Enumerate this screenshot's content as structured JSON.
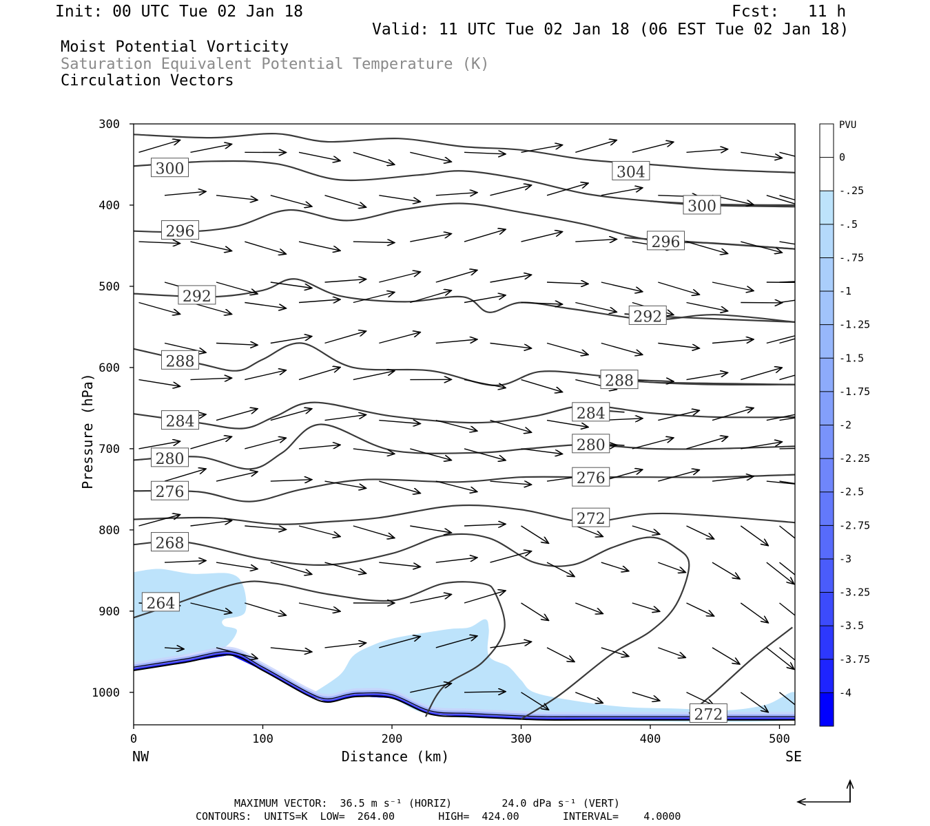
{
  "header": {
    "init": "Init: 00 UTC Tue 02 Jan 18",
    "fcst": "Fcst:   11 h",
    "valid": "Valid: 11 UTC Tue 02 Jan 18 (06 EST Tue 02 Jan 18)",
    "field1": "Moist Potential Vorticity",
    "field2": "Saturation Equivalent Potential Temperature (K)",
    "field3": "Circulation Vectors"
  },
  "footer": {
    "line1": "MAXIMUM VECTOR:  36.5 m s⁻¹ (HORIZ)        24.0 dPa s⁻¹ (VERT)",
    "line2": "CONTOURS:  UNITS=K  LOW=  264.00       HIGH=  424.00       INTERVAL=    4.0000"
  },
  "colors": {
    "contour": "#3a3a3a",
    "vector": "#000000",
    "frame": "#000000",
    "pv_light": "#bde3fb",
    "pv_dark": "#0000ff"
  },
  "chart_data": {
    "type": "contour",
    "xlabel": "Distance (km)",
    "ylabel": "Pressure (hPa)",
    "x_ticks": [
      0,
      100,
      200,
      300,
      400,
      500
    ],
    "y_ticks": [
      300,
      400,
      500,
      600,
      700,
      800,
      900,
      1000
    ],
    "xlim": [
      0,
      512
    ],
    "ylim": [
      300,
      1040
    ],
    "y_inverted": true,
    "left_end": "NW",
    "right_end": "SE",
    "colorbar": {
      "title": "PVU",
      "labels": [
        "0",
        "-.25",
        "-.5",
        "-.75",
        "-1",
        "-1.25",
        "-1.5",
        "-1.75",
        "-2",
        "-2.25",
        "-2.5",
        "-2.75",
        "-3",
        "-3.25",
        "-3.5",
        "-3.75",
        "-4"
      ],
      "colors": [
        "#ffffff",
        "#ffffff",
        "#bde3fb",
        "#b4d9fb",
        "#aacefb",
        "#a1c3fb",
        "#97b7fb",
        "#8dabfb",
        "#839ffb",
        "#7993fb",
        "#6f86fb",
        "#6379fb",
        "#576bfb",
        "#4a5cfb",
        "#3c4bfc",
        "#2d38fd",
        "#1e24fe",
        "#0000ff"
      ]
    },
    "theta_contours": [
      {
        "value": 304,
        "label": "304",
        "label_at": [
          385,
          358
        ],
        "points": [
          [
            0,
            313
          ],
          [
            60,
            317
          ],
          [
            110,
            312
          ],
          [
            150,
            322
          ],
          [
            205,
            318
          ],
          [
            255,
            328
          ],
          [
            300,
            332
          ],
          [
            350,
            344
          ],
          [
            400,
            350
          ],
          [
            450,
            356
          ],
          [
            512,
            360
          ]
        ]
      },
      {
        "value": 300,
        "label": "300",
        "label_at": [
          28,
          354
        ],
        "points": [
          [
            0,
            352
          ],
          [
            60,
            346
          ],
          [
            110,
            349
          ],
          [
            160,
            369
          ],
          [
            220,
            363
          ],
          [
            255,
            358
          ],
          [
            300,
            368
          ],
          [
            350,
            386
          ],
          [
            400,
            395
          ],
          [
            450,
            399
          ],
          [
            512,
            400
          ]
        ]
      },
      {
        "value": 300,
        "label": "300",
        "label_at": [
          440,
          400
        ],
        "points": [
          [
            400,
            395
          ],
          [
            440,
            400
          ],
          [
            512,
            402
          ]
        ]
      },
      {
        "value": 296,
        "label": "296",
        "label_at": [
          36,
          431
        ],
        "points": [
          [
            0,
            432
          ],
          [
            40,
            433
          ],
          [
            80,
            426
          ],
          [
            120,
            406
          ],
          [
            165,
            419
          ],
          [
            210,
            405
          ],
          [
            255,
            398
          ],
          [
            300,
            409
          ],
          [
            350,
            424
          ],
          [
            400,
            443
          ],
          [
            450,
            447
          ],
          [
            512,
            454
          ]
        ]
      },
      {
        "value": 296,
        "label": "296",
        "label_at": [
          412,
          444
        ],
        "points": [
          [
            380,
            440
          ],
          [
            420,
            444
          ],
          [
            512,
            454
          ]
        ]
      },
      {
        "value": 292,
        "label": "292",
        "label_at": [
          49,
          511
        ],
        "points": [
          [
            0,
            509
          ],
          [
            60,
            513
          ],
          [
            100,
            505
          ],
          [
            125,
            491
          ],
          [
            160,
            512
          ],
          [
            210,
            519
          ],
          [
            255,
            513
          ],
          [
            275,
            532
          ],
          [
            300,
            520
          ],
          [
            340,
            528
          ],
          [
            400,
            541
          ],
          [
            450,
            535
          ],
          [
            512,
            544
          ]
        ]
      },
      {
        "value": 292,
        "label": "292",
        "label_at": [
          398,
          536
        ],
        "points": [
          [
            380,
            534
          ],
          [
            420,
            538
          ],
          [
            512,
            544
          ]
        ]
      },
      {
        "value": 288,
        "label": "288",
        "label_at": [
          36,
          591
        ],
        "points": [
          [
            0,
            577
          ],
          [
            50,
            595
          ],
          [
            80,
            604
          ],
          [
            100,
            590
          ],
          [
            130,
            570
          ],
          [
            170,
            600
          ],
          [
            230,
            604
          ],
          [
            280,
            622
          ],
          [
            315,
            605
          ],
          [
            360,
            610
          ],
          [
            400,
            618
          ],
          [
            450,
            621
          ],
          [
            512,
            621
          ]
        ]
      },
      {
        "value": 288,
        "label": "288",
        "label_at": [
          376,
          615
        ],
        "points": [
          [
            360,
            612
          ],
          [
            400,
            618
          ],
          [
            512,
            621
          ]
        ]
      },
      {
        "value": 284,
        "label": "284",
        "label_at": [
          36,
          665
        ],
        "points": [
          [
            0,
            657
          ],
          [
            50,
            668
          ],
          [
            85,
            675
          ],
          [
            110,
            660
          ],
          [
            140,
            643
          ],
          [
            200,
            660
          ],
          [
            265,
            668
          ],
          [
            310,
            660
          ],
          [
            350,
            647
          ],
          [
            400,
            656
          ],
          [
            450,
            661
          ],
          [
            512,
            661
          ]
        ]
      },
      {
        "value": 284,
        "label": "284",
        "label_at": [
          354,
          655
        ],
        "points": [
          [
            340,
            650
          ],
          [
            380,
            655
          ]
        ]
      },
      {
        "value": 280,
        "label": "280",
        "label_at": [
          28,
          711
        ],
        "points": [
          [
            0,
            714
          ],
          [
            50,
            710
          ],
          [
            90,
            725
          ],
          [
            115,
            705
          ],
          [
            145,
            670
          ],
          [
            200,
            702
          ],
          [
            265,
            705
          ],
          [
            305,
            700
          ],
          [
            350,
            695
          ],
          [
            400,
            700
          ],
          [
            450,
            700
          ],
          [
            512,
            697
          ]
        ]
      },
      {
        "value": 280,
        "label": "280",
        "label_at": [
          354,
          694
        ],
        "points": [
          [
            340,
            692
          ],
          [
            380,
            696
          ]
        ]
      },
      {
        "value": 276,
        "label": "276",
        "label_at": [
          28,
          752
        ],
        "points": [
          [
            0,
            752
          ],
          [
            50,
            753
          ],
          [
            90,
            765
          ],
          [
            130,
            750
          ],
          [
            180,
            738
          ],
          [
            250,
            741
          ],
          [
            300,
            735
          ],
          [
            350,
            735
          ],
          [
            400,
            735
          ],
          [
            450,
            735
          ],
          [
            512,
            732
          ]
        ]
      },
      {
        "value": 276,
        "label": "276",
        "label_at": [
          354,
          735
        ],
        "points": [
          [
            340,
            735
          ],
          [
            380,
            735
          ]
        ]
      },
      {
        "value": 272,
        "label": "272",
        "label_at": [
          354,
          785
        ],
        "points": [
          [
            0,
            787
          ],
          [
            60,
            785
          ],
          [
            110,
            793
          ],
          [
            150,
            790
          ],
          [
            190,
            785
          ],
          [
            250,
            770
          ],
          [
            300,
            775
          ],
          [
            350,
            790
          ],
          [
            400,
            780
          ],
          [
            450,
            783
          ],
          [
            512,
            791
          ]
        ]
      },
      {
        "value": 268,
        "label": "268",
        "label_at": [
          28,
          815
        ],
        "points": [
          [
            0,
            818
          ],
          [
            40,
            815
          ],
          [
            100,
            836
          ],
          [
            150,
            843
          ],
          [
            200,
            829
          ],
          [
            240,
            807
          ],
          [
            275,
            810
          ],
          [
            310,
            840
          ],
          [
            340,
            843
          ],
          [
            370,
            822
          ],
          [
            400,
            809
          ],
          [
            420,
            822
          ],
          [
            430,
            843
          ],
          [
            420,
            892
          ],
          [
            400,
            925
          ],
          [
            370,
            953
          ],
          [
            330,
            1003
          ],
          [
            300,
            1033
          ]
        ]
      },
      {
        "value": 264,
        "label": "264",
        "label_at": [
          21,
          889
        ],
        "points": [
          [
            0,
            908
          ],
          [
            25,
            895
          ],
          [
            80,
            866
          ],
          [
            110,
            866
          ],
          [
            150,
            879
          ],
          [
            200,
            887
          ],
          [
            240,
            866
          ],
          [
            270,
            866
          ],
          [
            280,
            878
          ],
          [
            287,
            922
          ],
          [
            270,
            963
          ],
          [
            240,
            993
          ],
          [
            226,
            1030
          ]
        ]
      },
      {
        "value": 272,
        "label": "272",
        "label_at": [
          445,
          1026
        ],
        "points": [
          [
            510,
            920
          ],
          [
            480,
            957
          ],
          [
            450,
            1000
          ],
          [
            430,
            1026
          ]
        ]
      }
    ],
    "terrain_surface_hpa": [
      [
        0,
        973
      ],
      [
        40,
        963
      ],
      [
        75,
        954
      ],
      [
        100,
        973
      ],
      [
        135,
        1004
      ],
      [
        150,
        1012
      ],
      [
        165,
        1007
      ],
      [
        175,
        1005
      ],
      [
        200,
        1007
      ],
      [
        230,
        1027
      ],
      [
        260,
        1030
      ],
      [
        300,
        1033
      ],
      [
        320,
        1034
      ],
      [
        360,
        1034
      ],
      [
        512,
        1034
      ]
    ],
    "pv_regions": [
      {
        "level": "-.25 to -.5",
        "points": [
          [
            0,
            852
          ],
          [
            20,
            848
          ],
          [
            45,
            854
          ],
          [
            75,
            854
          ],
          [
            85,
            870
          ],
          [
            86,
            902
          ],
          [
            70,
            910
          ],
          [
            70,
            918
          ],
          [
            80,
            924
          ],
          [
            70,
            945
          ],
          [
            50,
            950
          ],
          [
            30,
            958
          ],
          [
            0,
            966
          ]
        ]
      },
      {
        "level": "-.25 to -.5",
        "points": [
          [
            140,
            1000
          ],
          [
            160,
            978
          ],
          [
            170,
            955
          ],
          [
            185,
            942
          ],
          [
            200,
            934
          ],
          [
            220,
            928
          ],
          [
            245,
            922
          ],
          [
            260,
            920
          ],
          [
            272,
            910
          ],
          [
            275,
            922
          ],
          [
            275,
            955
          ],
          [
            290,
            968
          ],
          [
            300,
            985
          ],
          [
            310,
            1000
          ],
          [
            340,
            1010
          ],
          [
            380,
            1018
          ],
          [
            420,
            1020
          ],
          [
            460,
            1022
          ],
          [
            490,
            1015
          ],
          [
            512,
            1000
          ],
          [
            512,
            1034
          ],
          [
            300,
            1033
          ],
          [
            230,
            1027
          ],
          [
            200,
            1008
          ],
          [
            170,
            1002
          ],
          [
            150,
            1008
          ]
        ]
      }
    ],
    "vectors": [
      [
        10,
        336,
        300,
        -30
      ],
      [
        50,
        334,
        0,
        0
      ],
      [
        65,
        333,
        320,
        10
      ],
      [
        89,
        327,
        -5,
        -30
      ],
      [
        160,
        353,
        -15,
        32
      ],
      [
        220,
        323,
        37,
        -42
      ],
      [
        195,
        323,
        27,
        -25
      ],
      [
        10,
        388,
        430,
        -10
      ],
      [
        70,
        376,
        -15,
        -18
      ],
      [
        150,
        394,
        -24,
        22
      ],
      [
        195,
        394,
        -11,
        10
      ],
      [
        225,
        411,
        -15,
        10
      ],
      [
        300,
        405,
        -20,
        -19
      ],
      [
        320,
        407,
        -20,
        20
      ],
      [
        10,
        445,
        -12,
        10
      ],
      [
        60,
        438,
        -30,
        15
      ],
      [
        122,
        450,
        -20,
        15
      ],
      [
        232,
        453,
        -15,
        15
      ],
      [
        300,
        476,
        -25,
        -20
      ],
      [
        320,
        483,
        -26,
        -18
      ]
    ]
  }
}
